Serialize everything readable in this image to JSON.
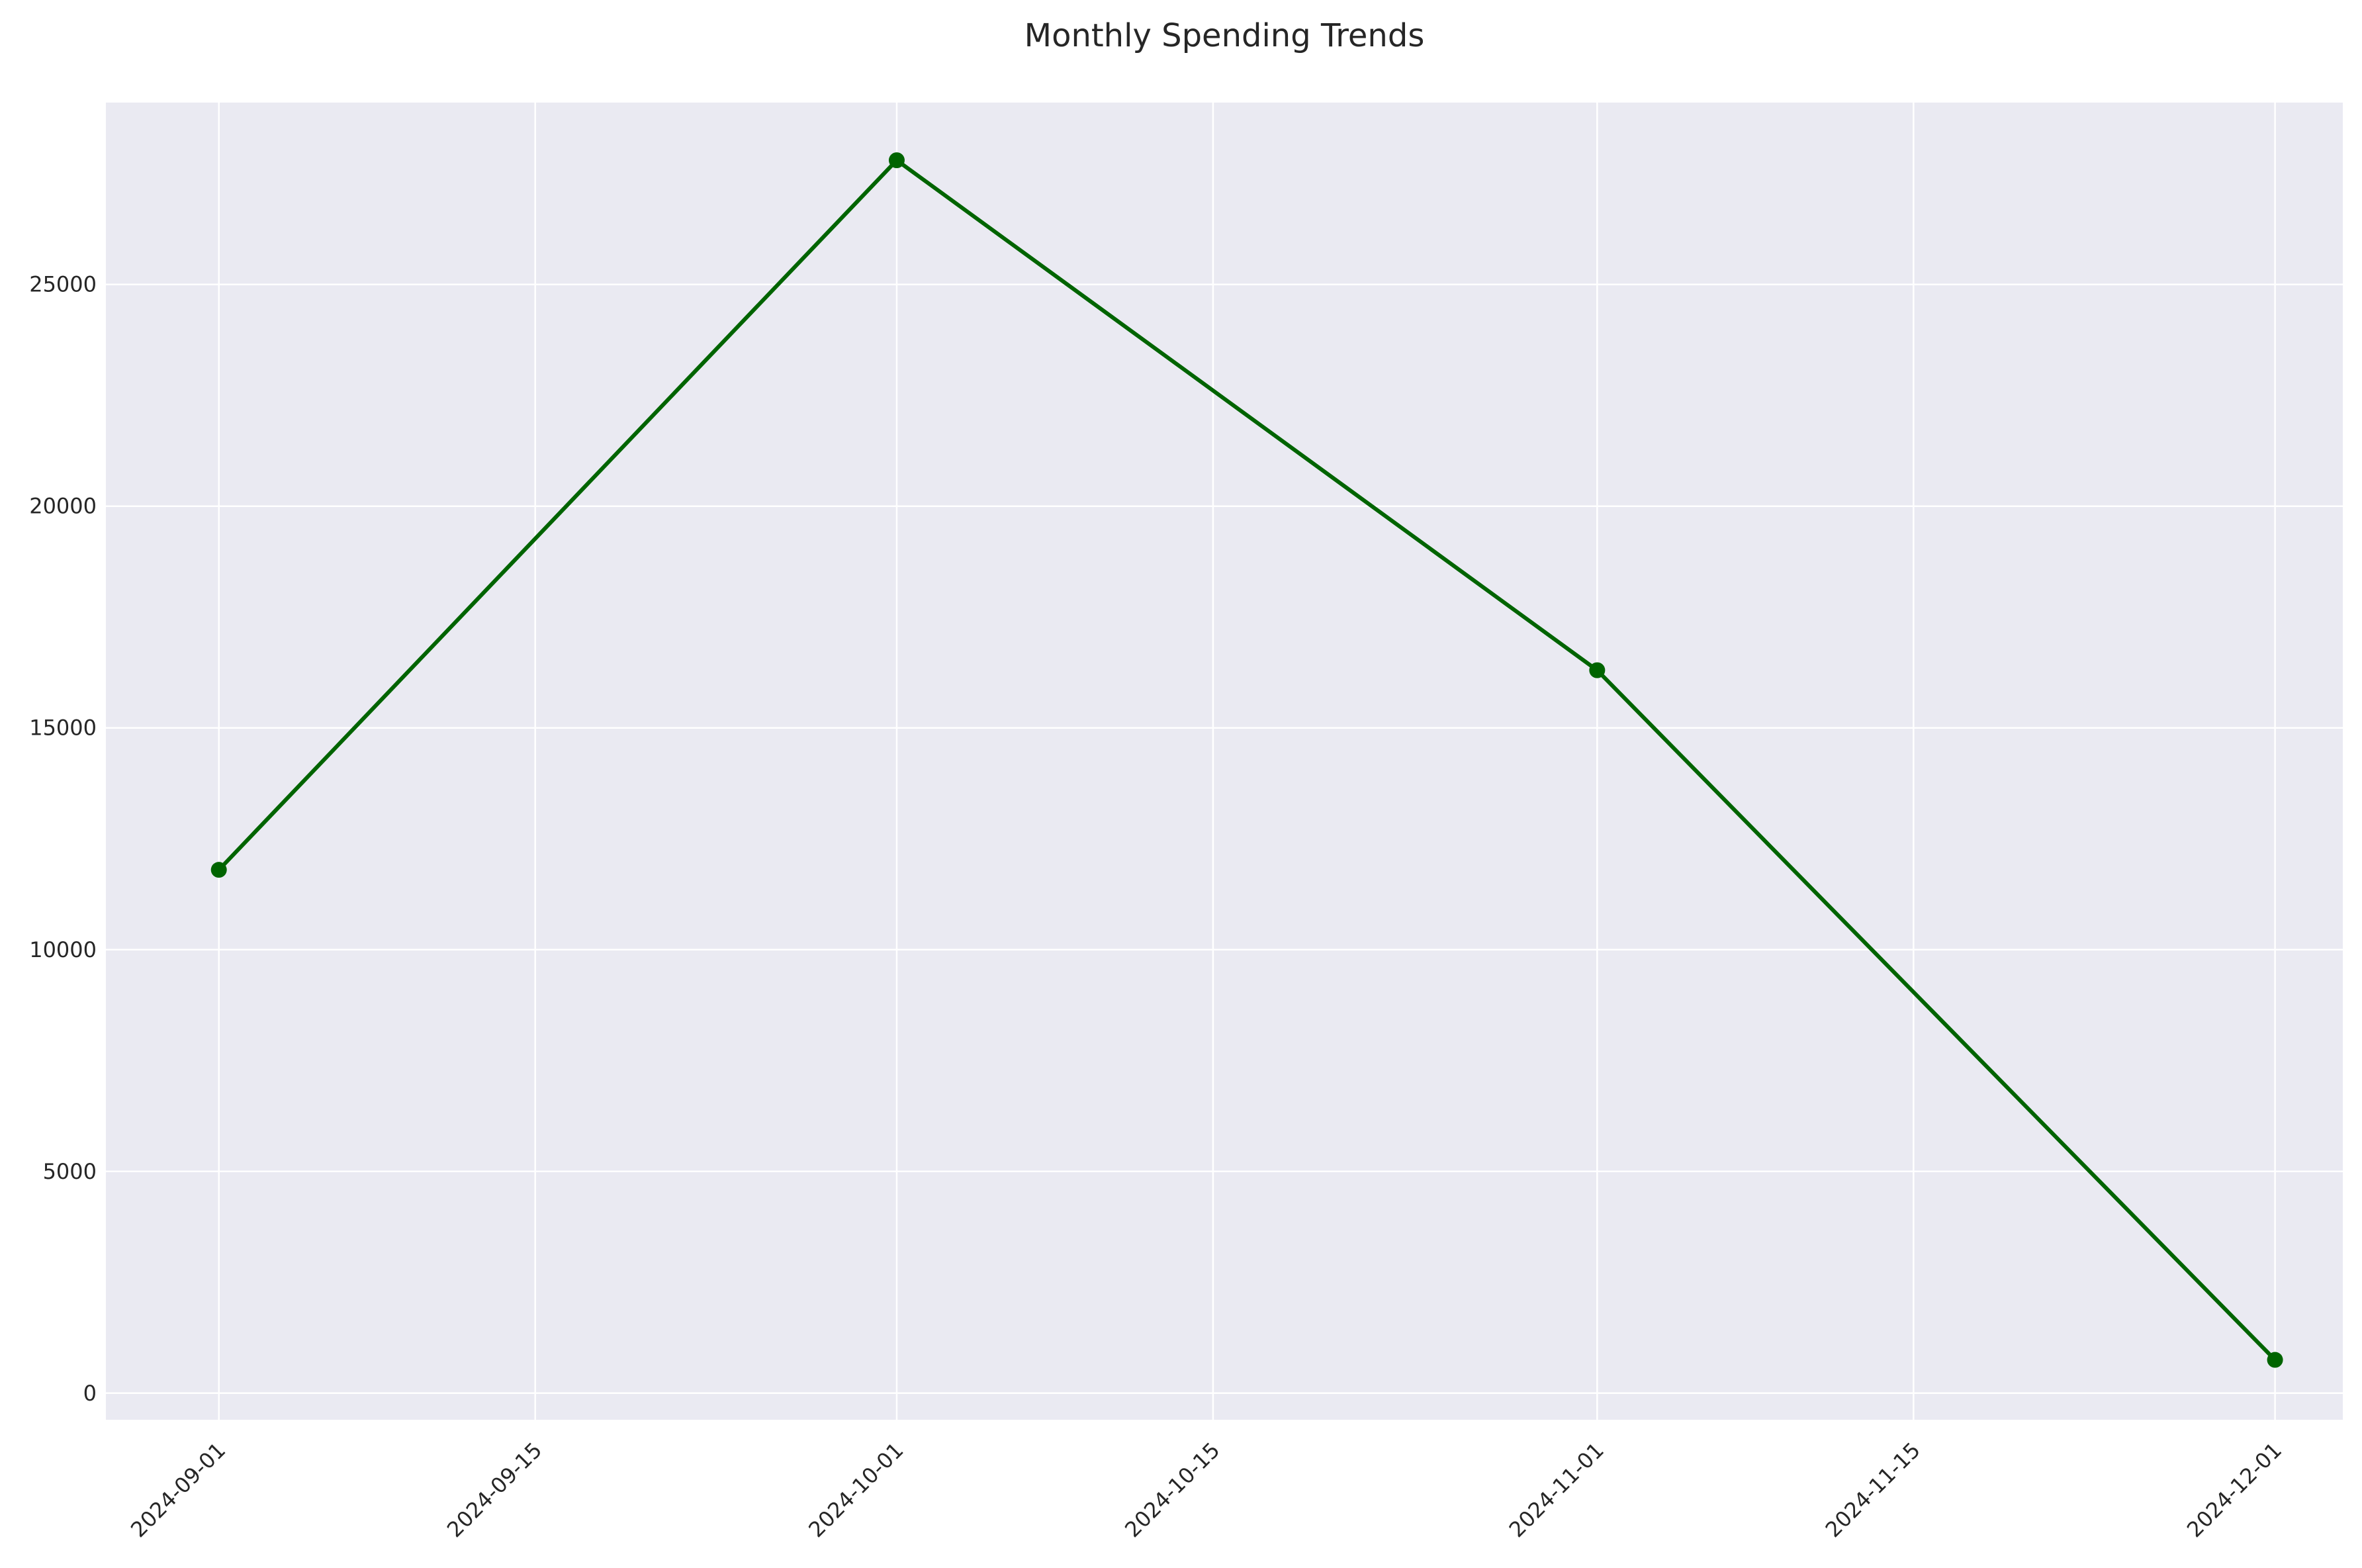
{
  "chart_data": {
    "type": "line",
    "title": "Monthly Spending Trends",
    "xlabel": "",
    "ylabel": "",
    "x": [
      "2024-09-01",
      "2024-10-01",
      "2024-11-01",
      "2024-12-01"
    ],
    "series": [
      {
        "values": [
          11800,
          27800,
          16300,
          750
        ],
        "color": "#006400"
      }
    ],
    "xlim": [
      "2024-08-27",
      "2024-12-04"
    ],
    "ylim": [
      -600,
      29100
    ],
    "x_ticks": [
      "2024-09-01",
      "2024-09-15",
      "2024-10-01",
      "2024-10-15",
      "2024-11-01",
      "2024-11-15",
      "2024-12-01"
    ],
    "y_ticks": [
      0,
      5000,
      10000,
      15000,
      20000,
      25000
    ],
    "grid": true,
    "legend": "none",
    "colors": {
      "background": "#eaeaf2",
      "grid": "#ffffff",
      "text": "#262626"
    }
  }
}
